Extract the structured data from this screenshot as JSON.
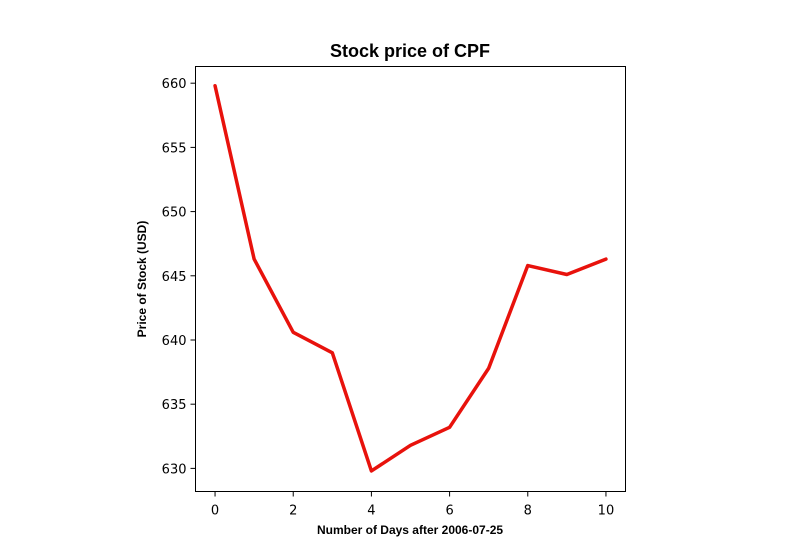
{
  "chart_data": {
    "type": "line",
    "title": "Stock price of CPF",
    "xlabel": "Number of Days after 2006-07-25",
    "ylabel": "Price of Stock (USD)",
    "x": [
      0,
      1,
      2,
      3,
      4,
      5,
      6,
      7,
      8,
      9,
      10
    ],
    "series": [
      {
        "values": [
          659.8,
          646.3,
          640.6,
          639.0,
          629.8,
          631.8,
          633.2,
          637.8,
          645.8,
          645.1,
          646.3
        ],
        "color": "#e8120c"
      }
    ],
    "xlim": [
      -0.5,
      10.5
    ],
    "ylim": [
      628.2,
      661.3
    ],
    "xticks": [
      0,
      2,
      4,
      6,
      8,
      10
    ],
    "yticks": [
      630,
      635,
      640,
      645,
      650,
      655,
      660
    ],
    "grid": false
  }
}
